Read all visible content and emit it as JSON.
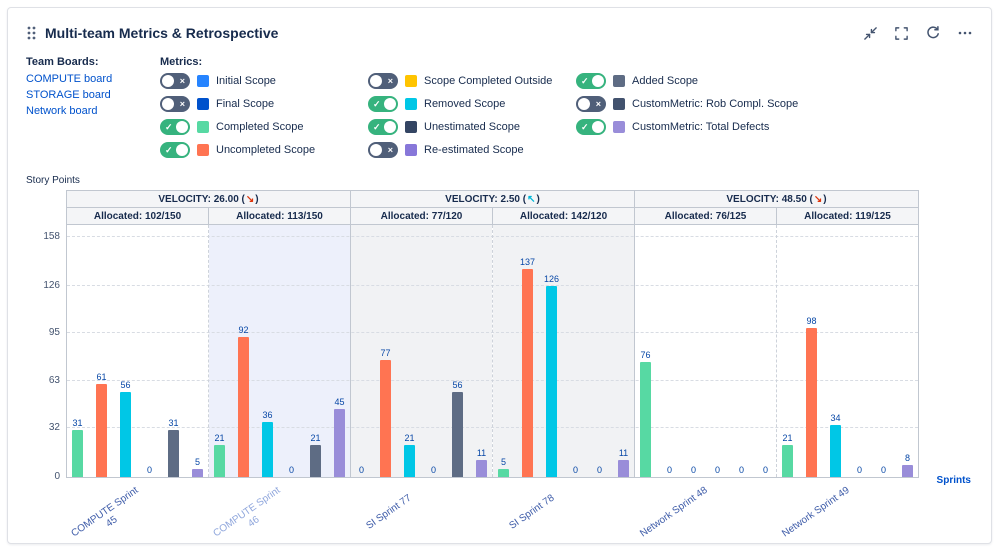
{
  "header": {
    "title": "Multi-team Metrics & Retrospective",
    "icons": [
      "drag-handle-icon",
      "collapse-icon",
      "fullscreen-icon",
      "refresh-icon",
      "more-menu-icon"
    ]
  },
  "team_boards": {
    "label": "Team Boards:",
    "boards": [
      {
        "label": "COMPUTE board"
      },
      {
        "label": "STORAGE board"
      },
      {
        "label": "Network board"
      }
    ]
  },
  "metrics": {
    "label": "Metrics:",
    "columns": [
      [
        {
          "label": "Initial Scope",
          "on": false,
          "color": "#2684FF"
        },
        {
          "label": "Final Scope",
          "on": false,
          "color": "#0052CC"
        },
        {
          "label": "Completed Scope",
          "on": true,
          "color": "#57D9A3"
        },
        {
          "label": "Uncompleted Scope",
          "on": true,
          "color": "#FF7452"
        }
      ],
      [
        {
          "label": "Scope Completed Outside",
          "on": false,
          "color": "#FFC400"
        },
        {
          "label": "Removed Scope",
          "on": true,
          "color": "#00C7E6"
        },
        {
          "label": "Unestimated Scope",
          "on": true,
          "color": "#344563"
        },
        {
          "label": "Re-estimated Scope",
          "on": false,
          "color": "#8777D9"
        }
      ],
      [
        {
          "label": "Added Scope",
          "on": true,
          "color": "#5E6C84"
        },
        {
          "label": "CustomMetric: Rob Compl. Scope",
          "on": false,
          "color": "#42526E"
        },
        {
          "label": "CustomMetric: Total Defects",
          "on": true,
          "color": "#998DD9"
        }
      ]
    ]
  },
  "chart_data": {
    "type": "bar",
    "ylabel": "Story Points",
    "xlabel": "Sprints",
    "yticks": [
      0,
      32,
      63,
      95,
      126,
      158
    ],
    "ymax": 158,
    "grid": true,
    "velocity_bands": [
      {
        "text": "VELOCITY: 26.00",
        "arrow": "↘",
        "arrow_color": "#DE350B",
        "trend": "down"
      },
      {
        "text": "VELOCITY: 2.50",
        "arrow": "↖",
        "arrow_color": "#00B8D9",
        "trend": "up"
      },
      {
        "text": "VELOCITY: 48.50",
        "arrow": "↘",
        "arrow_color": "#DE350B",
        "trend": "down"
      }
    ],
    "allocations": [
      "Allocated: 102/150",
      "Allocated: 113/150",
      "Allocated: 77/120",
      "Allocated: 142/120",
      "Allocated: 76/125",
      "Allocated: 119/125"
    ],
    "sprints": [
      {
        "label": "COMPUTE Sprint 45",
        "highlight": "none"
      },
      {
        "label": "COMPUTE Sprint 46",
        "highlight": "blue"
      },
      {
        "label": "SI Sprint 77",
        "highlight": "gray"
      },
      {
        "label": "SI Sprint 78",
        "highlight": "gray"
      },
      {
        "label": "Network Sprint 48",
        "highlight": "none"
      },
      {
        "label": "Network Sprint 49",
        "highlight": "none"
      }
    ],
    "series": [
      {
        "name": "Completed Scope",
        "color": "#57D9A3",
        "values": [
          31,
          21,
          0,
          5,
          76,
          21
        ]
      },
      {
        "name": "Uncompleted Scope",
        "color": "#FF7452",
        "values": [
          61,
          92,
          77,
          137,
          0,
          98
        ]
      },
      {
        "name": "Removed Scope",
        "color": "#00C7E6",
        "values": [
          56,
          36,
          21,
          126,
          0,
          34
        ]
      },
      {
        "name": "Unestimated Scope",
        "color": "#344563",
        "values": [
          0,
          0,
          0,
          0,
          0,
          0
        ]
      },
      {
        "name": "Added Scope",
        "color": "#5E6C84",
        "values": [
          31,
          21,
          56,
          0,
          0,
          0
        ]
      },
      {
        "name": "CustomMetric: Total Defects",
        "color": "#998DD9",
        "values": [
          5,
          45,
          11,
          11,
          0,
          8
        ]
      }
    ],
    "highlight_colors": {
      "blue": "#EDF0FB",
      "gray": "#F1F2F4"
    }
  }
}
